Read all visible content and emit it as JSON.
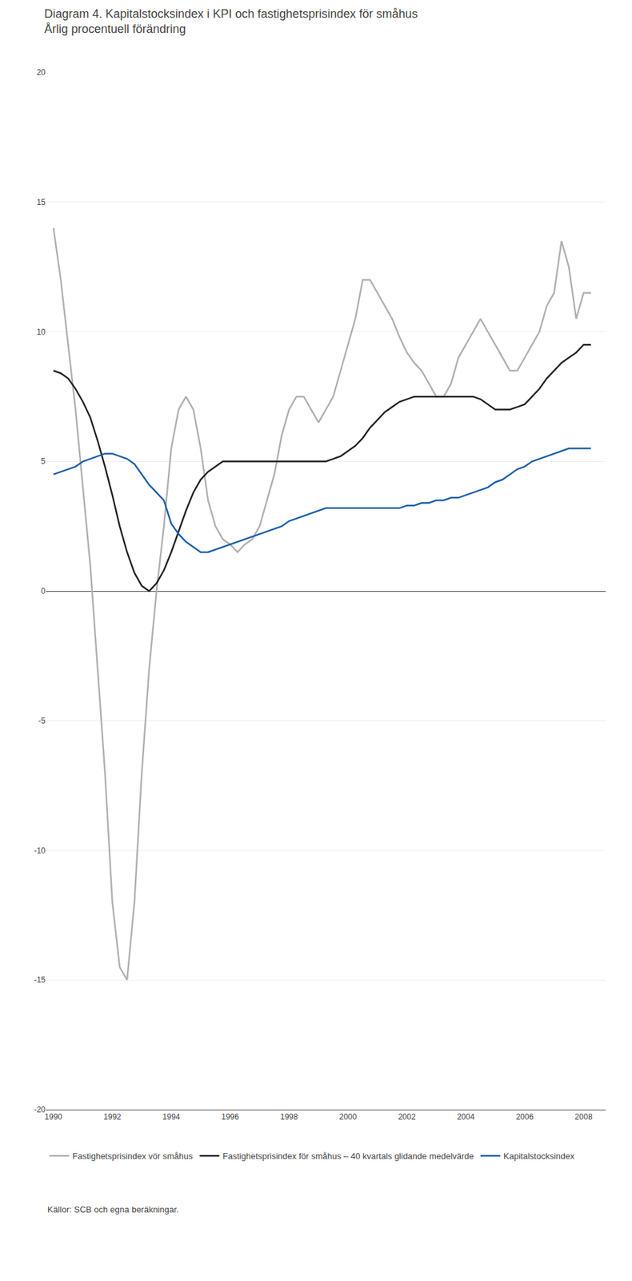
{
  "chart_data": {
    "type": "line",
    "title": "Diagram 4. Kapitalstocksindex i KPI och fastighetsprisindex för småhus",
    "subtitle": "Årlig procentuell förändring",
    "annotations": [
      "Källor: SCB och egna beräkningar."
    ],
    "xlim": [
      1989.75,
      2008.75
    ],
    "xticks": [
      1990,
      1992,
      1994,
      1996,
      1998,
      2000,
      2002,
      2004,
      2006,
      2008
    ],
    "ylim": [
      -20,
      20
    ],
    "yticks": [
      -20,
      -15,
      -10,
      -5,
      0,
      5,
      10,
      15,
      20
    ],
    "grid": true,
    "legend": "bottom",
    "x": [
      1990.0,
      1990.25,
      1990.5,
      1990.75,
      1991.0,
      1991.25,
      1991.5,
      1991.75,
      1992.0,
      1992.25,
      1992.5,
      1992.75,
      1993.0,
      1993.25,
      1993.5,
      1993.75,
      1994.0,
      1994.25,
      1994.5,
      1994.75,
      1995.0,
      1995.25,
      1995.5,
      1995.75,
      1996.0,
      1996.25,
      1996.5,
      1996.75,
      1997.0,
      1997.25,
      1997.5,
      1997.75,
      1998.0,
      1998.25,
      1998.5,
      1998.75,
      1999.0,
      1999.25,
      1999.5,
      1999.75,
      2000.0,
      2000.25,
      2000.5,
      2000.75,
      2001.0,
      2001.25,
      2001.5,
      2001.75,
      2002.0,
      2002.25,
      2002.5,
      2002.75,
      2003.0,
      2003.25,
      2003.5,
      2003.75,
      2004.0,
      2004.25,
      2004.5,
      2004.75,
      2005.0,
      2005.25,
      2005.5,
      2005.75,
      2006.0,
      2006.25,
      2006.5,
      2006.75,
      2007.0,
      2007.25,
      2007.5,
      2007.75,
      2008.0,
      2008.25
    ],
    "series": [
      {
        "name": "Fastighetsprisindex vör småhus",
        "color": "#b0b0b0",
        "values": [
          14.0,
          12.0,
          9.5,
          7.0,
          4.0,
          1.0,
          -3.0,
          -7.0,
          -12.0,
          -14.5,
          -15.0,
          -12.0,
          -7.0,
          -3.0,
          0.0,
          2.5,
          5.5,
          7.0,
          7.5,
          7.0,
          5.5,
          3.5,
          2.5,
          2.0,
          1.8,
          1.5,
          1.8,
          2.0,
          2.5,
          3.5,
          4.5,
          6.0,
          7.0,
          7.5,
          7.5,
          7.0,
          6.5,
          7.0,
          7.5,
          8.5,
          9.5,
          10.5,
          12.0,
          12.0,
          11.5,
          11.0,
          10.5,
          9.8,
          9.2,
          8.8,
          8.5,
          8.0,
          7.5,
          7.5,
          8.0,
          9.0,
          9.5,
          10.0,
          10.5,
          10.0,
          9.5,
          9.0,
          8.5,
          8.5,
          9.0,
          9.5,
          10.0,
          11.0,
          11.5,
          13.5,
          12.5,
          10.5,
          11.5,
          11.5
        ]
      },
      {
        "name": "Fastighetsprisindex för småhus – 40 kvartals glidande medelvärde",
        "color": "#222222",
        "values": [
          8.5,
          8.4,
          8.2,
          7.8,
          7.3,
          6.7,
          5.8,
          4.8,
          3.7,
          2.5,
          1.5,
          0.7,
          0.2,
          0.0,
          0.3,
          0.8,
          1.5,
          2.3,
          3.1,
          3.8,
          4.3,
          4.6,
          4.8,
          5.0,
          5.0,
          5.0,
          5.0,
          5.0,
          5.0,
          5.0,
          5.0,
          5.0,
          5.0,
          5.0,
          5.0,
          5.0,
          5.0,
          5.0,
          5.1,
          5.2,
          5.4,
          5.6,
          5.9,
          6.3,
          6.6,
          6.9,
          7.1,
          7.3,
          7.4,
          7.5,
          7.5,
          7.5,
          7.5,
          7.5,
          7.5,
          7.5,
          7.5,
          7.5,
          7.4,
          7.2,
          7.0,
          7.0,
          7.0,
          7.1,
          7.2,
          7.5,
          7.8,
          8.2,
          8.5,
          8.8,
          9.0,
          9.2,
          9.5,
          9.5
        ]
      },
      {
        "name": "Kapitalstocksindex",
        "color": "#1a5fa8",
        "values": [
          4.5,
          4.6,
          4.7,
          4.8,
          5.0,
          5.1,
          5.2,
          5.3,
          5.3,
          5.2,
          5.1,
          4.9,
          4.5,
          4.1,
          3.8,
          3.5,
          2.6,
          2.2,
          1.9,
          1.7,
          1.5,
          1.5,
          1.6,
          1.7,
          1.8,
          1.9,
          2.0,
          2.1,
          2.2,
          2.3,
          2.4,
          2.5,
          2.7,
          2.8,
          2.9,
          3.0,
          3.1,
          3.2,
          3.2,
          3.2,
          3.2,
          3.2,
          3.2,
          3.2,
          3.2,
          3.2,
          3.2,
          3.2,
          3.3,
          3.3,
          3.4,
          3.4,
          3.5,
          3.5,
          3.6,
          3.6,
          3.7,
          3.8,
          3.9,
          4.0,
          4.2,
          4.3,
          4.5,
          4.7,
          4.8,
          5.0,
          5.1,
          5.2,
          5.3,
          5.4,
          5.5,
          5.5,
          5.5,
          5.5
        ]
      }
    ]
  }
}
